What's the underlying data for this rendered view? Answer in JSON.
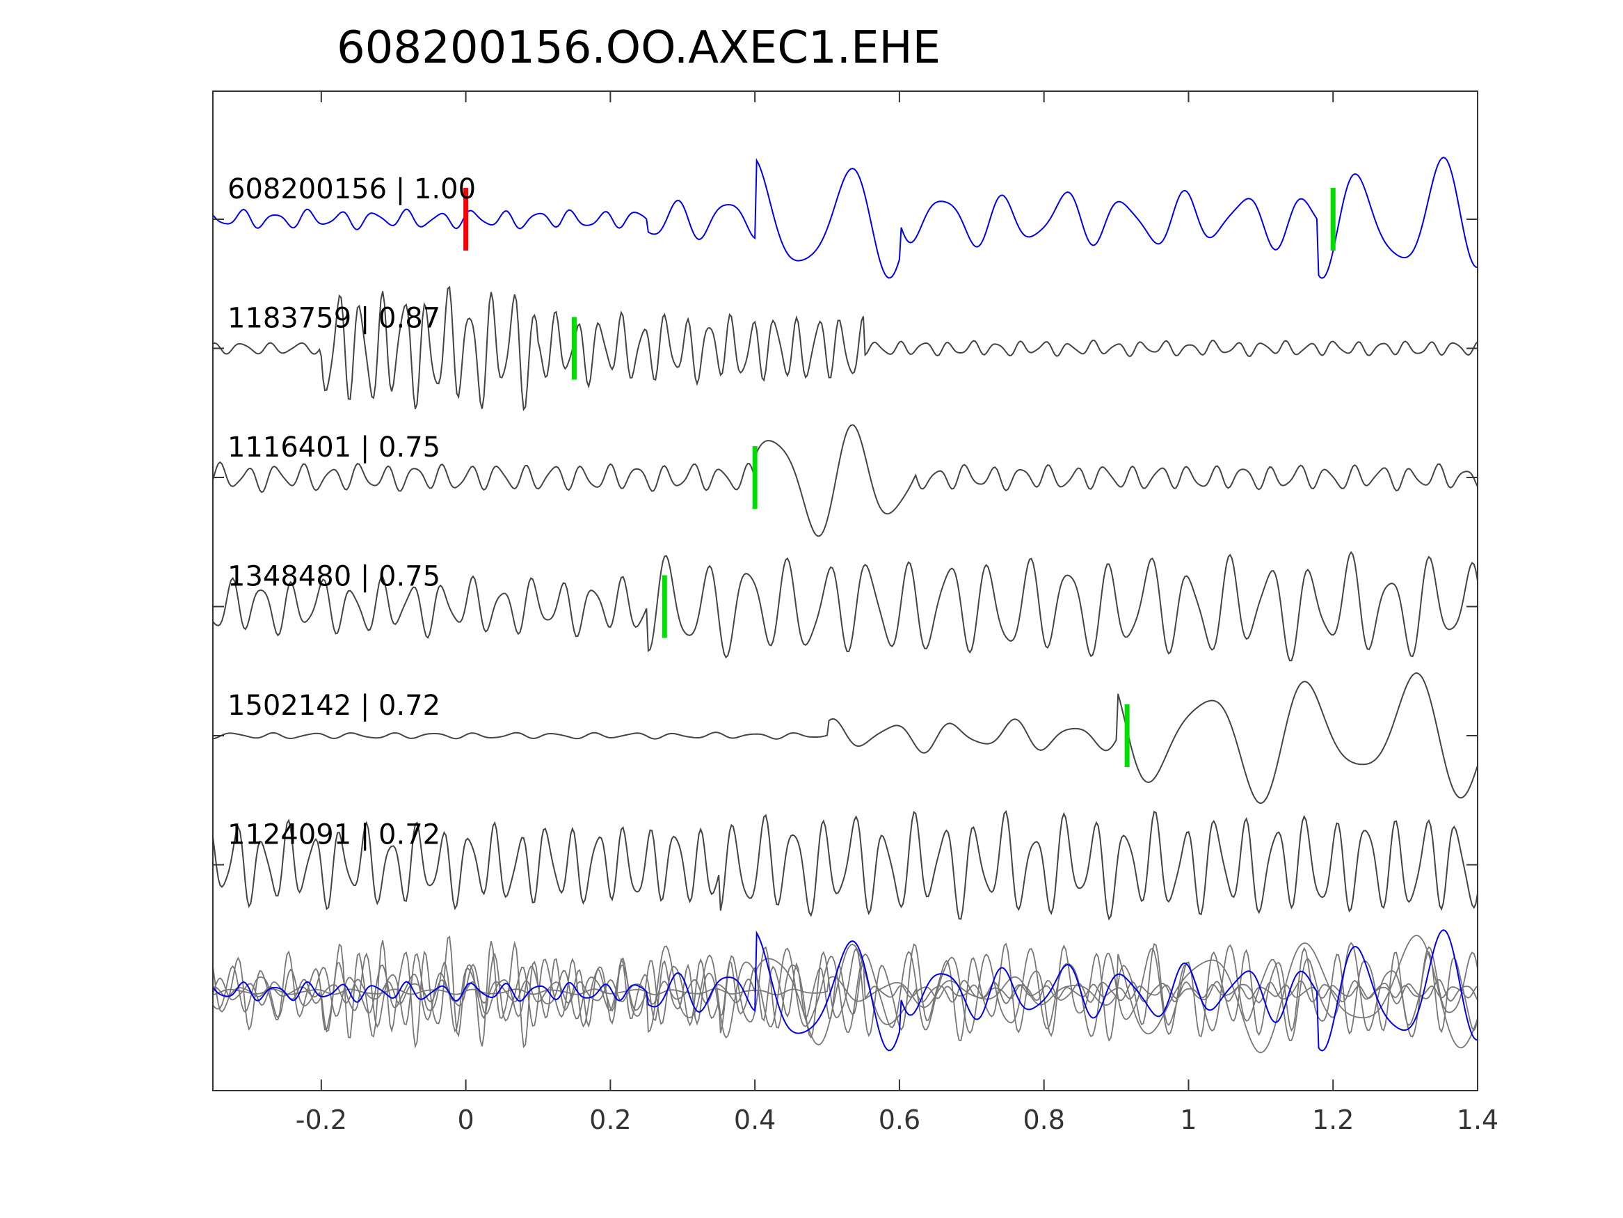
{
  "chart_data": {
    "type": "line",
    "title": "608200156.OO.AXEC1.EHE",
    "xlabel": "",
    "ylabel": "",
    "xlim": [
      -0.35,
      1.4
    ],
    "x_ticks": [
      -0.2,
      0,
      0.2,
      0.4,
      0.6,
      0.8,
      1,
      1.2,
      1.4
    ],
    "x_tick_labels": [
      "-0.2",
      "0",
      "0.2",
      "0.4",
      "0.6",
      "0.8",
      "1",
      "1.2",
      "1.4"
    ],
    "grid": false,
    "legend": "none",
    "colors": {
      "reference": "#0000ee",
      "neighbor": "#444444",
      "stack": "#777777",
      "reference_pick": "#ff0000",
      "pick": "#00dd00",
      "axis": "#333333",
      "text": "#000000"
    },
    "traces": [
      {
        "label": "608200156 | 1.00",
        "reference": true,
        "pick": 0.0,
        "predicted_pick": 1.2,
        "waveform": {
          "segments": [
            {
              "t0": -0.35,
              "t1": 0.25,
              "amp": 0.15,
              "freq": 22,
              "phase": 0.3
            },
            {
              "t0": 0.25,
              "t1": 0.4,
              "amp": 0.35,
              "freq": 14,
              "phase": 1.1
            },
            {
              "t0": 0.4,
              "t1": 0.6,
              "amp": 1.0,
              "freq": 8,
              "phase": 0.2
            },
            {
              "t0": 0.6,
              "t1": 1.18,
              "amp": 0.45,
              "freq": 12,
              "phase": 2.0
            },
            {
              "t0": 1.18,
              "t1": 1.4,
              "amp": 0.95,
              "freq": 9,
              "phase": 0.7
            }
          ]
        }
      },
      {
        "label": "1183759 | 0.87",
        "reference": false,
        "predicted_pick": 0.15,
        "waveform": {
          "segments": [
            {
              "t0": -0.35,
              "t1": -0.2,
              "amp": 0.1,
              "freq": 25,
              "phase": 0.0
            },
            {
              "t0": -0.2,
              "t1": 0.1,
              "amp": 0.95,
              "freq": 33,
              "phase": 0.4
            },
            {
              "t0": 0.1,
              "t1": 0.55,
              "amp": 0.55,
              "freq": 33,
              "phase": 0.9
            },
            {
              "t0": 0.55,
              "t1": 1.4,
              "amp": 0.12,
              "freq": 30,
              "phase": 1.3
            }
          ]
        }
      },
      {
        "label": "1116401 | 0.75",
        "reference": false,
        "predicted_pick": 0.4,
        "waveform": {
          "segments": [
            {
              "t0": -0.35,
              "t1": 0.4,
              "amp": 0.22,
              "freq": 26,
              "phase": 0.5
            },
            {
              "t0": 0.4,
              "t1": 0.62,
              "amp": 0.95,
              "freq": 9,
              "phase": 2.6
            },
            {
              "t0": 0.62,
              "t1": 1.4,
              "amp": 0.2,
              "freq": 26,
              "phase": 1.7
            }
          ]
        }
      },
      {
        "label": "1348480 | 0.75",
        "reference": false,
        "predicted_pick": 0.275,
        "waveform": {
          "segments": [
            {
              "t0": -0.35,
              "t1": 0.25,
              "amp": 0.45,
              "freq": 24,
              "phase": 0.2
            },
            {
              "t0": 0.25,
              "t1": 1.4,
              "amp": 0.8,
              "freq": 18,
              "phase": 1.4
            }
          ]
        }
      },
      {
        "label": "1502142 | 0.72",
        "reference": false,
        "predicted_pick": 0.915,
        "waveform": {
          "segments": [
            {
              "t0": -0.35,
              "t1": 0.5,
              "amp": 0.05,
              "freq": 18,
              "phase": 0.3
            },
            {
              "t0": 0.5,
              "t1": 0.9,
              "amp": 0.25,
              "freq": 12,
              "phase": 1.0
            },
            {
              "t0": 0.9,
              "t1": 1.4,
              "amp": 1.0,
              "freq": 7,
              "phase": 0.5
            }
          ]
        }
      },
      {
        "label": "1124091 | 0.72",
        "reference": false,
        "waveform": {
          "segments": [
            {
              "t0": -0.35,
              "t1": 0.35,
              "amp": 0.65,
              "freq": 28,
              "phase": 0.8
            },
            {
              "t0": 0.35,
              "t1": 1.4,
              "amp": 0.8,
              "freq": 24,
              "phase": 2.2
            }
          ]
        }
      }
    ],
    "stack": {
      "overlay_of": "all traces",
      "highlight": "608200156 | 1.00"
    }
  }
}
